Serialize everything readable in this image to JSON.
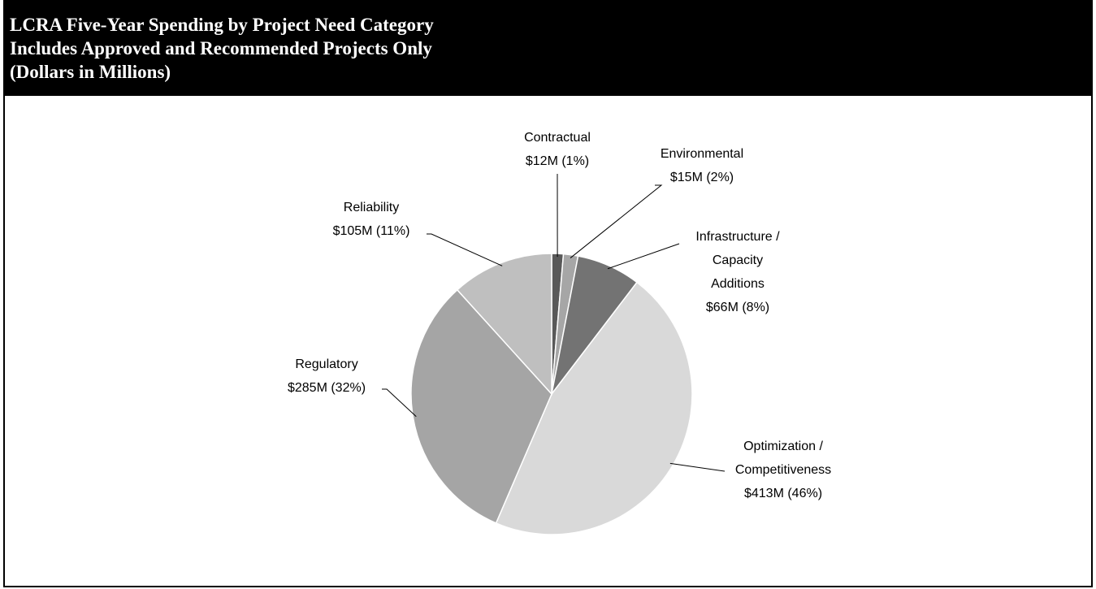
{
  "chart_data": {
    "type": "pie",
    "title": "LCRA Five-Year Spending by Project Need Category",
    "subtitle": "Includes Approved and Recommended Projects Only",
    "units": "(Dollars in Millions)",
    "categories": [
      "Contractual",
      "Environmental",
      "Infrastructure / Capacity Additions",
      "Optimization / Competitiveness",
      "Regulatory",
      "Reliability"
    ],
    "values": [
      12,
      15,
      66,
      413,
      285,
      105
    ],
    "value_labels": [
      "$12M  (1%)",
      "$15M  (2%)",
      "$66M  (8%)",
      "$413M (46%)",
      "$285M  (32%)",
      "$105M  (11%)"
    ],
    "colors": [
      "#595959",
      "#a6a6a6",
      "#737373",
      "#d9d9d9",
      "#a5a5a5",
      "#bfbfbf"
    ]
  }
}
